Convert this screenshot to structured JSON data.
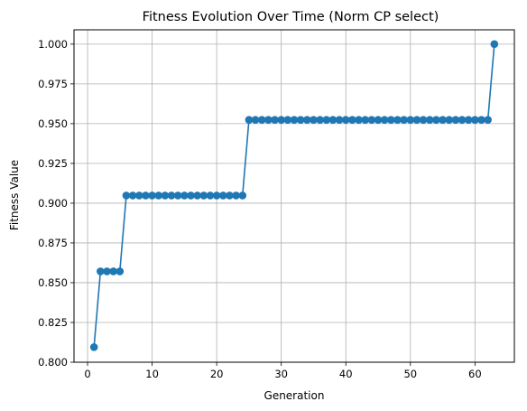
{
  "chart_data": {
    "type": "line",
    "title": "Fitness Evolution Over Time (Norm CP select)",
    "xlabel": "Generation",
    "ylabel": "Fitness Value",
    "xlim": [
      -2.1,
      66.1
    ],
    "ylim": [
      0.8,
      1.009
    ],
    "xticks": [
      0,
      10,
      20,
      30,
      40,
      50,
      60
    ],
    "xtick_labels": [
      "0",
      "10",
      "20",
      "30",
      "40",
      "50",
      "60"
    ],
    "yticks": [
      0.8,
      0.825,
      0.85,
      0.875,
      0.9,
      0.925,
      0.95,
      0.975,
      1.0
    ],
    "ytick_labels": [
      "0.800",
      "0.825",
      "0.850",
      "0.875",
      "0.900",
      "0.925",
      "0.950",
      "0.975",
      "1.000"
    ],
    "grid": true,
    "marker": "circle",
    "line_color": "#1f77b4",
    "series": [
      {
        "x": [
          1,
          2,
          3,
          4,
          5,
          6,
          7,
          8,
          9,
          10,
          11,
          12,
          13,
          14,
          15,
          16,
          17,
          18,
          19,
          20,
          21,
          22,
          23,
          24,
          25,
          26,
          27,
          28,
          29,
          30,
          31,
          32,
          33,
          34,
          35,
          36,
          37,
          38,
          39,
          40,
          41,
          42,
          43,
          44,
          45,
          46,
          47,
          48,
          49,
          50,
          51,
          52,
          53,
          54,
          55,
          56,
          57,
          58,
          59,
          60,
          61,
          62,
          63
        ],
        "values": [
          0.8095,
          0.8571,
          0.8571,
          0.8571,
          0.8571,
          0.9048,
          0.9048,
          0.9048,
          0.9048,
          0.9048,
          0.9048,
          0.9048,
          0.9048,
          0.9048,
          0.9048,
          0.9048,
          0.9048,
          0.9048,
          0.9048,
          0.9048,
          0.9048,
          0.9048,
          0.9048,
          0.9048,
          0.9524,
          0.9524,
          0.9524,
          0.9524,
          0.9524,
          0.9524,
          0.9524,
          0.9524,
          0.9524,
          0.9524,
          0.9524,
          0.9524,
          0.9524,
          0.9524,
          0.9524,
          0.9524,
          0.9524,
          0.9524,
          0.9524,
          0.9524,
          0.9524,
          0.9524,
          0.9524,
          0.9524,
          0.9524,
          0.9524,
          0.9524,
          0.9524,
          0.9524,
          0.9524,
          0.9524,
          0.9524,
          0.9524,
          0.9524,
          0.9524,
          0.9524,
          0.9524,
          0.9524,
          1.0
        ]
      }
    ]
  }
}
